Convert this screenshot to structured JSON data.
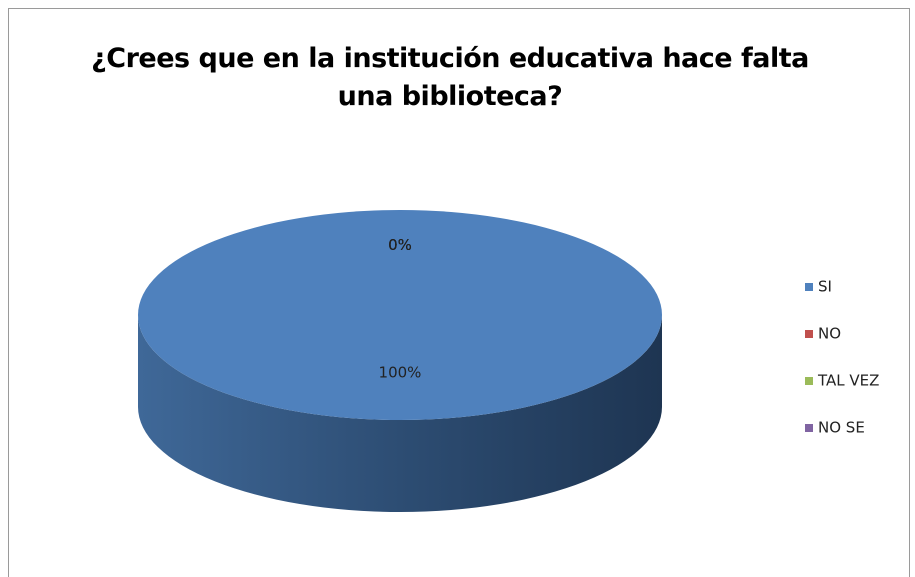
{
  "chart_data": {
    "type": "pie3d",
    "title": "¿Crees que en la institución educativa hace falta una biblioteca?",
    "categories": [
      "SI",
      "NO",
      "TAL VEZ",
      "NO SE"
    ],
    "values": [
      100,
      0,
      0,
      0
    ],
    "value_labels": [
      "100%",
      "0%",
      "0%",
      "0%"
    ],
    "colors": [
      "#4f81bd",
      "#c0504d",
      "#9bbb59",
      "#8064a2"
    ],
    "legend": "right"
  }
}
